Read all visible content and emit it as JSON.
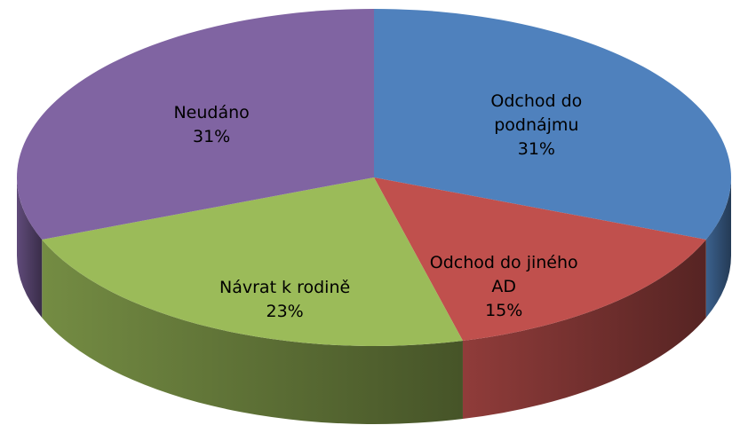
{
  "chart_data": {
    "type": "pie",
    "categories": [
      "Odchod do podnájmu",
      "Odchod do jiného AD",
      "Návrat k rodině",
      "Neudáno"
    ],
    "values": [
      31,
      15,
      23,
      31
    ],
    "value_labels": [
      "31%",
      "15%",
      "23%",
      "31%"
    ],
    "colors": [
      "#4f81bd",
      "#c0504d",
      "#9bbb59",
      "#8064a2"
    ]
  }
}
